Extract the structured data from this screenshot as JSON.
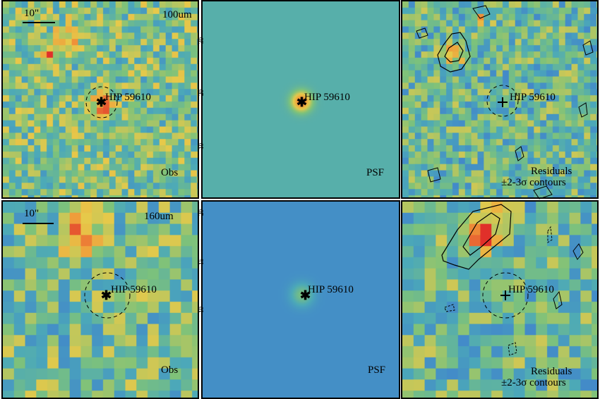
{
  "panels": [
    {
      "id": "p1",
      "kind": "obs",
      "band": "100um",
      "scale_label": "10\"",
      "source": "HIP 59610",
      "corner": "Obs"
    },
    {
      "id": "p2",
      "kind": "psf",
      "source": "HIP 59610",
      "corner": "PSF",
      "axis_ticks": [
        "30",
        "20",
        "10"
      ]
    },
    {
      "id": "p3",
      "kind": "res",
      "source": "HIP 59610",
      "corner_line1": "Residuals",
      "corner_line2": "±2-3σ contours"
    },
    {
      "id": "p4",
      "kind": "obs",
      "band": "160um",
      "scale_label": "10\"",
      "source": "HIP 59610",
      "corner": "Obs"
    },
    {
      "id": "p5",
      "kind": "psf",
      "source": "HIP 59610",
      "corner": "PSF",
      "axis_ticks": [
        "20",
        "15",
        "10"
      ]
    },
    {
      "id": "p6",
      "kind": "res",
      "source": "HIP 59610",
      "corner_line1": "Residuals",
      "corner_line2": "±2-3σ contours"
    }
  ],
  "colors": {
    "low": "#3b2a8c",
    "blue": "#3f7fcf",
    "mid": "#4ca9b8",
    "green": "#7ec27a",
    "yellow": "#e6c94a",
    "orange": "#f09a3a",
    "red": "#e0302a",
    "psf_bg_top": "#5cb49a",
    "psf_bg_bottom": "#4a8fc8"
  }
}
